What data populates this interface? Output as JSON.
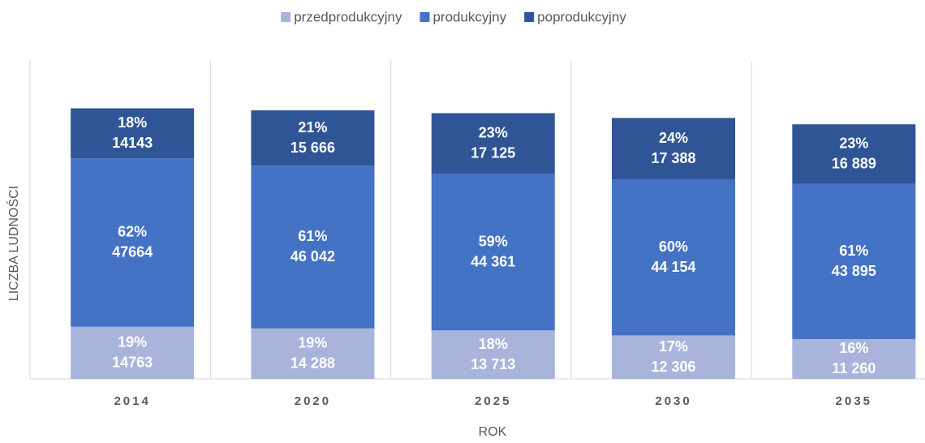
{
  "chart_data": {
    "type": "stacked_bar",
    "categories": [
      "2014",
      "2020",
      "2025",
      "2030",
      "2035"
    ],
    "series": [
      {
        "name": "przedprodukcyjny",
        "color": "#a9b4dc",
        "values": [
          14763,
          14288,
          13713,
          12306,
          11260
        ],
        "value_labels": [
          "14763",
          "14 288",
          "13 713",
          "12 306",
          "11 260"
        ],
        "share_labels": [
          "19%",
          "19%",
          "18%",
          "17%",
          "16%"
        ]
      },
      {
        "name": "produkcyjny",
        "color": "#4472c4",
        "values": [
          47664,
          46042,
          44361,
          44154,
          43895
        ],
        "value_labels": [
          "47664",
          "46 042",
          "44 361",
          "44 154",
          "43 895"
        ],
        "share_labels": [
          "62%",
          "61%",
          "59%",
          "60%",
          "61%"
        ]
      },
      {
        "name": "poprodukcyjny",
        "color": "#2f5597",
        "values": [
          14143,
          15666,
          17125,
          17388,
          16889
        ],
        "value_labels": [
          "14143",
          "15 666",
          "17 125",
          "17 388",
          "16 889"
        ],
        "share_labels": [
          "18%",
          "21%",
          "23%",
          "24%",
          "23%"
        ]
      }
    ],
    "x_label": "ROK",
    "y_label": "LICZBA LUDNOŚCI",
    "ylim": [
      0,
      90000
    ],
    "legend": "top"
  }
}
